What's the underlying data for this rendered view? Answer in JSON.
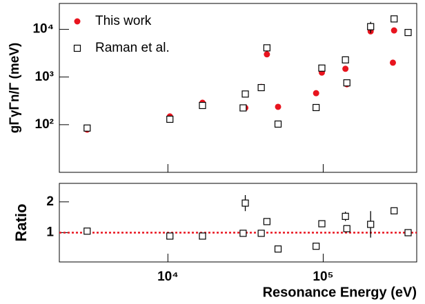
{
  "chart_data": [
    {
      "type": "scatter",
      "ylabel": "gΓγΓn/Γ (meV)",
      "xscale": "log",
      "yscale": "log",
      "xlim": [
        2000,
        400000
      ],
      "ylim": [
        10,
        35000
      ],
      "xticks": [
        10000,
        100000
      ],
      "yticks": [
        {
          "value": 100,
          "label": "10²"
        },
        {
          "value": 1000,
          "label": "10³"
        },
        {
          "value": 10000,
          "label": "10⁴"
        }
      ],
      "legend": "upper left",
      "x": [
        3020,
        10300,
        16700,
        30500,
        31500,
        39900,
        43400,
        51200,
        90000,
        98000,
        139000,
        142000,
        202000,
        281000,
        286000,
        352000
      ],
      "series": [
        {
          "name": "This work",
          "color": "#e8141e",
          "marker": "circle",
          "values": [
            79,
            149,
            289,
            225,
            226,
            620,
            3000,
            237,
            458,
            1240,
            1490,
            705,
            9100,
            2000,
            9500,
            8700
          ]
        },
        {
          "name": "Raman et al.",
          "color": "#000000",
          "marker": "open-square",
          "values": [
            85,
            130,
            253,
            225,
            440,
            600,
            4100,
            103,
            229,
            1540,
            2290,
            755,
            11400,
            null,
            16600,
            8600
          ],
          "errors": [
            null,
            null,
            null,
            null,
            null,
            null,
            null,
            null,
            null,
            null,
            null,
            null,
            3000,
            null,
            null,
            null
          ]
        }
      ]
    },
    {
      "type": "scatter",
      "ylabel": "Ratio",
      "xlabel": "Resonance Energy (eV)",
      "xscale": "log",
      "xlim": [
        2000,
        400000
      ],
      "ylim": [
        0.05,
        2.6
      ],
      "xticks": [
        {
          "value": 10000,
          "label": "10⁴"
        },
        {
          "value": 100000,
          "label": "10⁵"
        }
      ],
      "yticks": [
        1,
        2
      ],
      "hline": 1,
      "hline_color": "#e8141e",
      "x": [
        3020,
        10300,
        16700,
        30500,
        31500,
        39900,
        43400,
        51200,
        90000,
        98000,
        139000,
        142000,
        202000,
        281000,
        286000,
        352000
      ],
      "series": [
        {
          "color": "#000000",
          "marker": "open-square",
          "values": [
            1.05,
            0.89,
            0.89,
            0.98,
            1.96,
            0.98,
            1.36,
            0.47,
            0.56,
            1.29,
            1.53,
            1.13,
            1.27,
            null,
            1.71,
            1.0
          ],
          "errors": [
            null,
            null,
            null,
            null,
            0.26,
            null,
            null,
            null,
            null,
            null,
            0.15,
            null,
            0.43,
            null,
            null,
            null
          ]
        }
      ]
    }
  ]
}
